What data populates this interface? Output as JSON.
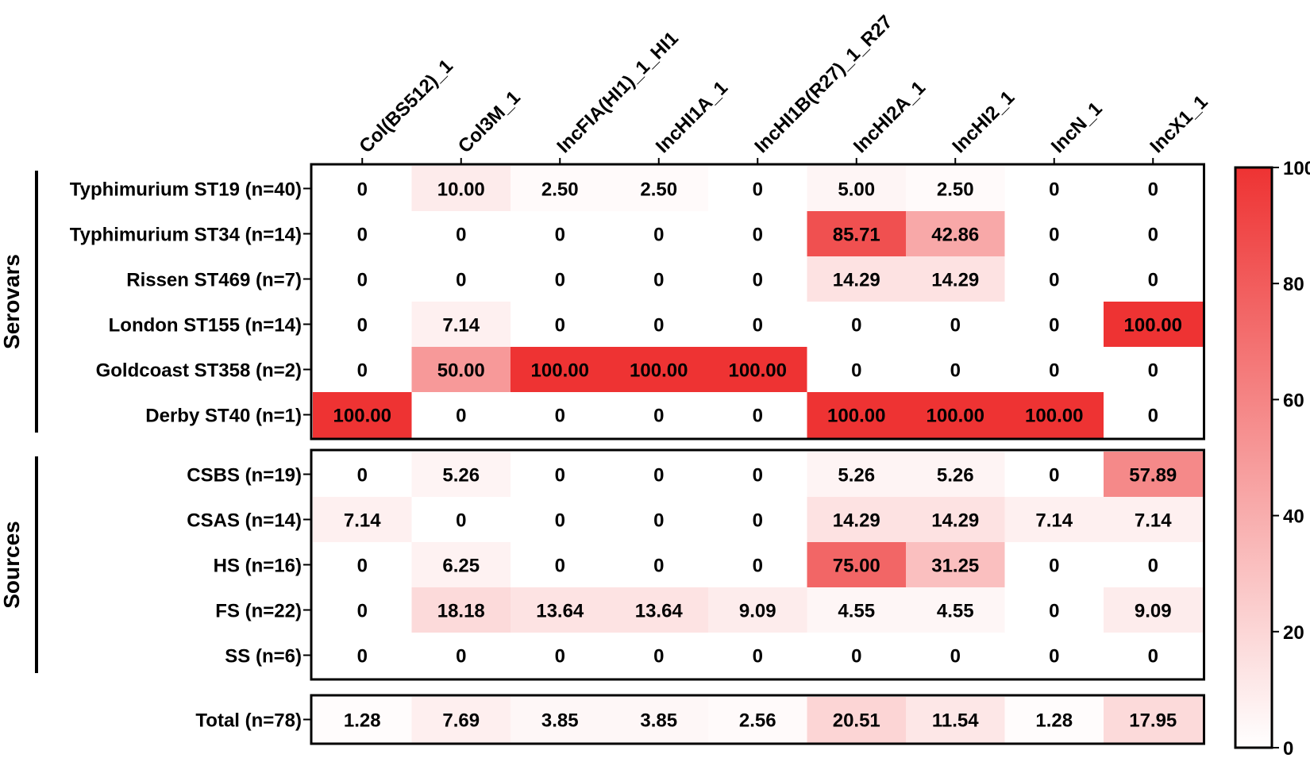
{
  "chart_data": {
    "type": "heatmap",
    "columns": [
      "Col(BS512)_1",
      "Col3M_1",
      "IncFIA(HI1)_1_HI1",
      "IncHI1A_1",
      "IncHI1B(R27)_1_R27",
      "IncHI2A_1",
      "IncHI2_1",
      "IncN_1",
      "IncX1_1"
    ],
    "blocks": [
      {
        "group_label": "Serovars",
        "rows": [
          {
            "label": "Typhimurium ST19 (n=40)",
            "values": [
              "0",
              "10.00",
              "2.50",
              "2.50",
              "0",
              "5.00",
              "2.50",
              "0",
              "0"
            ]
          },
          {
            "label": "Typhimurium ST34 (n=14)",
            "values": [
              "0",
              "0",
              "0",
              "0",
              "0",
              "85.71",
              "42.86",
              "0",
              "0"
            ]
          },
          {
            "label": "Rissen ST469 (n=7)",
            "values": [
              "0",
              "0",
              "0",
              "0",
              "0",
              "14.29",
              "14.29",
              "0",
              "0"
            ]
          },
          {
            "label": "London ST155 (n=14)",
            "values": [
              "0",
              "7.14",
              "0",
              "0",
              "0",
              "0",
              "0",
              "0",
              "100.00"
            ]
          },
          {
            "label": "Goldcoast ST358 (n=2)",
            "values": [
              "0",
              "50.00",
              "100.00",
              "100.00",
              "100.00",
              "0",
              "0",
              "0",
              "0"
            ]
          },
          {
            "label": "Derby ST40 (n=1)",
            "values": [
              "100.00",
              "0",
              "0",
              "0",
              "0",
              "100.00",
              "100.00",
              "100.00",
              "0"
            ]
          }
        ]
      },
      {
        "group_label": "Sources",
        "rows": [
          {
            "label": "CSBS (n=19)",
            "values": [
              "0",
              "5.26",
              "0",
              "0",
              "0",
              "5.26",
              "5.26",
              "0",
              "57.89"
            ]
          },
          {
            "label": "CSAS (n=14)",
            "values": [
              "7.14",
              "0",
              "0",
              "0",
              "0",
              "14.29",
              "14.29",
              "7.14",
              "7.14"
            ]
          },
          {
            "label": "HS (n=16)",
            "values": [
              "0",
              "6.25",
              "0",
              "0",
              "0",
              "75.00",
              "31.25",
              "0",
              "0"
            ]
          },
          {
            "label": "FS (n=22)",
            "values": [
              "0",
              "18.18",
              "13.64",
              "13.64",
              "9.09",
              "4.55",
              "4.55",
              "0",
              "9.09"
            ]
          },
          {
            "label": "SS (n=6)",
            "values": [
              "0",
              "0",
              "0",
              "0",
              "0",
              "0",
              "0",
              "0",
              "0"
            ]
          }
        ]
      },
      {
        "group_label": "",
        "rows": [
          {
            "label": "Total (n=78)",
            "values": [
              "1.28",
              "7.69",
              "3.85",
              "3.85",
              "2.56",
              "20.51",
              "11.54",
              "1.28",
              "17.95"
            ]
          }
        ]
      }
    ],
    "colorbar": {
      "min": 0,
      "max": 100,
      "ticks": [
        "0",
        "20",
        "40",
        "60",
        "80",
        "100"
      ],
      "color_low": "#ffffff",
      "color_high": "#ee3333"
    }
  }
}
